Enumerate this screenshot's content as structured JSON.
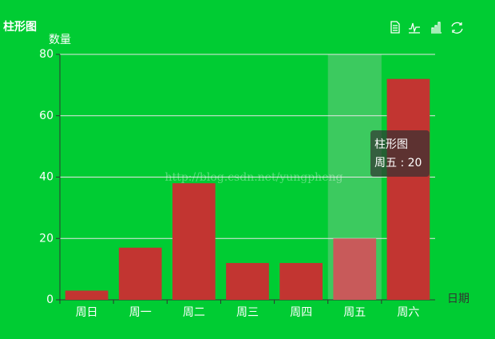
{
  "chart_data": {
    "type": "bar",
    "title": "柱形图",
    "y_axis_label": "数量",
    "x_axis_label": "日期",
    "categories": [
      "周日",
      "周一",
      "周二",
      "周三",
      "周四",
      "周五",
      "周六"
    ],
    "series": [
      {
        "name": "柱形图",
        "color": "#c23531",
        "values": [
          3,
          17,
          38,
          12,
          12,
          20,
          72
        ]
      }
    ],
    "ylim": [
      0,
      80
    ],
    "yticks": [
      0,
      20,
      40,
      60,
      80
    ],
    "grid": true,
    "tooltip": "周五 : 20",
    "watermark": "http://blog.csdn.net/yungpheng"
  }
}
